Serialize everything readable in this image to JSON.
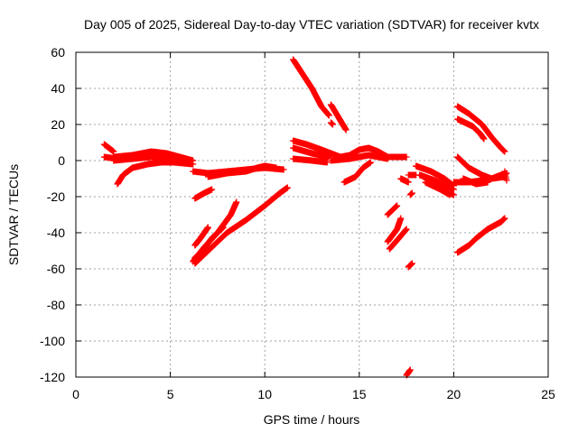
{
  "chart_data": {
    "type": "scatter",
    "title": "Day 005 of 2025, Sidereal Day-to-day VTEC variation (SDTVAR) for receiver kvtx",
    "xlabel": "GPS time / hours",
    "ylabel": "SDTVAR / TECUs",
    "xlim": [
      0,
      25
    ],
    "ylim": [
      -120,
      60
    ],
    "xticks": [
      0,
      5,
      10,
      15,
      20,
      25
    ],
    "yticks": [
      60,
      40,
      20,
      0,
      -20,
      -40,
      -60,
      -80,
      -100,
      -120
    ],
    "grid": true,
    "marker": "plus",
    "color": "#ff0000",
    "tracks": [
      {
        "name": "t01",
        "points": [
          [
            1.5,
            9
          ],
          [
            2.0,
            5
          ]
        ]
      },
      {
        "name": "t02",
        "points": [
          [
            1.5,
            2
          ],
          [
            2.2,
            1
          ]
        ]
      },
      {
        "name": "t03",
        "points": [
          [
            2.0,
            2
          ],
          [
            3.0,
            3
          ],
          [
            4.0,
            5
          ],
          [
            4.8,
            4
          ],
          [
            5.5,
            2
          ],
          [
            6.2,
            0
          ]
        ]
      },
      {
        "name": "t04",
        "points": [
          [
            2.2,
            -13
          ],
          [
            2.5,
            -8
          ],
          [
            3.0,
            -4
          ],
          [
            3.8,
            -2
          ],
          [
            4.5,
            -1
          ],
          [
            5.2,
            -1
          ],
          [
            6.2,
            -2
          ]
        ]
      },
      {
        "name": "t05",
        "points": [
          [
            2.0,
            0
          ],
          [
            3.0,
            1
          ],
          [
            4.0,
            2
          ],
          [
            5.0,
            1
          ],
          [
            6.0,
            0
          ]
        ]
      },
      {
        "name": "t06",
        "points": [
          [
            6.2,
            -6
          ],
          [
            7.0,
            -7
          ],
          [
            8.0,
            -6
          ],
          [
            9.0,
            -5
          ],
          [
            10.0,
            -4
          ],
          [
            11.0,
            -5
          ]
        ]
      },
      {
        "name": "t07",
        "points": [
          [
            7.0,
            -9
          ],
          [
            8.0,
            -7
          ],
          [
            9.0,
            -6
          ],
          [
            9.6,
            -4
          ],
          [
            10.0,
            -3
          ],
          [
            10.6,
            -4
          ]
        ]
      },
      {
        "name": "t08",
        "points": [
          [
            6.3,
            -21
          ],
          [
            6.8,
            -18
          ],
          [
            7.2,
            -16
          ]
        ]
      },
      {
        "name": "t09",
        "points": [
          [
            6.3,
            -47
          ],
          [
            6.6,
            -43
          ],
          [
            7.0,
            -37
          ]
        ]
      },
      {
        "name": "t10",
        "points": [
          [
            6.3,
            -54
          ],
          [
            6.7,
            -50
          ],
          [
            7.2,
            -43
          ],
          [
            7.8,
            -37
          ]
        ]
      },
      {
        "name": "t11",
        "points": [
          [
            6.3,
            -57
          ],
          [
            7.0,
            -50
          ],
          [
            8.0,
            -40
          ],
          [
            9.0,
            -33
          ],
          [
            10.0,
            -25
          ],
          [
            10.8,
            -18
          ],
          [
            11.2,
            -15
          ]
        ]
      },
      {
        "name": "t12",
        "points": [
          [
            6.2,
            -56
          ],
          [
            6.8,
            -48
          ]
        ]
      },
      {
        "name": "t13",
        "points": [
          [
            6.8,
            -48
          ],
          [
            7.5,
            -40
          ],
          [
            8.2,
            -30
          ],
          [
            8.5,
            -23
          ]
        ]
      },
      {
        "name": "t14",
        "points": [
          [
            11.5,
            56
          ],
          [
            12.0,
            48
          ],
          [
            12.5,
            40
          ],
          [
            13.0,
            30
          ],
          [
            13.4,
            25
          ]
        ]
      },
      {
        "name": "t15",
        "points": [
          [
            13.5,
            21
          ],
          [
            13.6,
            20
          ]
        ]
      },
      {
        "name": "t16",
        "points": [
          [
            13.5,
            31
          ],
          [
            13.9,
            24
          ],
          [
            14.3,
            17
          ]
        ]
      },
      {
        "name": "t17",
        "points": [
          [
            11.5,
            11
          ],
          [
            12.2,
            9
          ],
          [
            13.0,
            6
          ],
          [
            13.5,
            4
          ]
        ]
      },
      {
        "name": "t18",
        "points": [
          [
            11.5,
            7
          ],
          [
            12.5,
            4
          ],
          [
            13.3,
            2
          ],
          [
            13.5,
            3
          ]
        ]
      },
      {
        "name": "t19",
        "points": [
          [
            11.5,
            1
          ],
          [
            12.5,
            0
          ],
          [
            13.3,
            -1
          ]
        ]
      },
      {
        "name": "t20",
        "points": [
          [
            13.5,
            4
          ],
          [
            14.0,
            2
          ],
          [
            14.5,
            3
          ],
          [
            15.0,
            6
          ],
          [
            15.5,
            7
          ],
          [
            16.0,
            5
          ],
          [
            16.5,
            2
          ],
          [
            17.0,
            2
          ],
          [
            17.5,
            2
          ]
        ]
      },
      {
        "name": "t21",
        "points": [
          [
            13.5,
            0
          ],
          [
            14.5,
            1
          ],
          [
            15.5,
            3
          ],
          [
            16.5,
            1
          ]
        ]
      },
      {
        "name": "t22",
        "points": [
          [
            14.2,
            -12
          ],
          [
            14.8,
            -9
          ],
          [
            15.2,
            -4
          ],
          [
            15.6,
            -1
          ]
        ]
      },
      {
        "name": "t23",
        "points": [
          [
            16.5,
            -30
          ],
          [
            17.0,
            -25
          ]
        ]
      },
      {
        "name": "t24",
        "points": [
          [
            16.5,
            -45
          ],
          [
            17.0,
            -38
          ],
          [
            17.2,
            -32
          ]
        ]
      },
      {
        "name": "t25",
        "points": [
          [
            16.6,
            -49
          ],
          [
            17.1,
            -43
          ],
          [
            17.5,
            -38
          ]
        ]
      },
      {
        "name": "t26",
        "points": [
          [
            17.2,
            -10
          ],
          [
            17.6,
            -12
          ]
        ]
      },
      {
        "name": "t27",
        "points": [
          [
            17.6,
            -8
          ],
          [
            18.0,
            -8
          ]
        ]
      },
      {
        "name": "t28",
        "points": [
          [
            17.7,
            -19
          ],
          [
            17.8,
            -18
          ]
        ]
      },
      {
        "name": "t29",
        "points": [
          [
            17.6,
            -59
          ],
          [
            17.8,
            -57
          ]
        ]
      },
      {
        "name": "t30",
        "points": [
          [
            17.5,
            -119
          ],
          [
            17.7,
            -116
          ]
        ]
      },
      {
        "name": "t31",
        "points": [
          [
            18.0,
            -3
          ],
          [
            18.8,
            -6
          ],
          [
            19.5,
            -10
          ],
          [
            20.0,
            -14
          ]
        ]
      },
      {
        "name": "t32",
        "points": [
          [
            18.2,
            -8
          ],
          [
            19.0,
            -11
          ],
          [
            19.8,
            -15
          ],
          [
            20.0,
            -16
          ]
        ]
      },
      {
        "name": "t33",
        "points": [
          [
            18.4,
            -9
          ],
          [
            19.2,
            -13
          ],
          [
            19.8,
            -18
          ],
          [
            20.0,
            -19
          ]
        ]
      },
      {
        "name": "t34",
        "points": [
          [
            18.5,
            -12
          ],
          [
            19.3,
            -16
          ],
          [
            19.8,
            -19
          ]
        ]
      },
      {
        "name": "t35",
        "points": [
          [
            20.2,
            30
          ],
          [
            20.8,
            26
          ],
          [
            21.5,
            20
          ],
          [
            22.0,
            13
          ],
          [
            22.5,
            7
          ],
          [
            22.7,
            5
          ]
        ]
      },
      {
        "name": "t36",
        "points": [
          [
            20.2,
            23
          ],
          [
            21.0,
            19
          ],
          [
            21.4,
            15
          ],
          [
            21.6,
            12
          ]
        ]
      },
      {
        "name": "t37",
        "points": [
          [
            20.2,
            2
          ],
          [
            20.8,
            -4
          ],
          [
            21.5,
            -8
          ],
          [
            22.0,
            -10
          ],
          [
            22.5,
            -8
          ],
          [
            22.8,
            -7
          ]
        ]
      },
      {
        "name": "t38",
        "points": [
          [
            20.0,
            -12
          ],
          [
            20.8,
            -12
          ],
          [
            21.5,
            -11
          ],
          [
            22.0,
            -10
          ],
          [
            22.7,
            -9
          ]
        ]
      },
      {
        "name": "t39",
        "points": [
          [
            20.5,
            -10
          ],
          [
            21.2,
            -13
          ],
          [
            21.8,
            -12
          ]
        ]
      },
      {
        "name": "t40",
        "points": [
          [
            22.7,
            -6
          ],
          [
            22.8,
            -11
          ]
        ]
      },
      {
        "name": "t41",
        "points": [
          [
            20.2,
            -51
          ],
          [
            20.8,
            -47
          ],
          [
            21.2,
            -43
          ],
          [
            21.8,
            -38
          ],
          [
            22.5,
            -34
          ],
          [
            22.7,
            -32
          ]
        ]
      }
    ]
  }
}
